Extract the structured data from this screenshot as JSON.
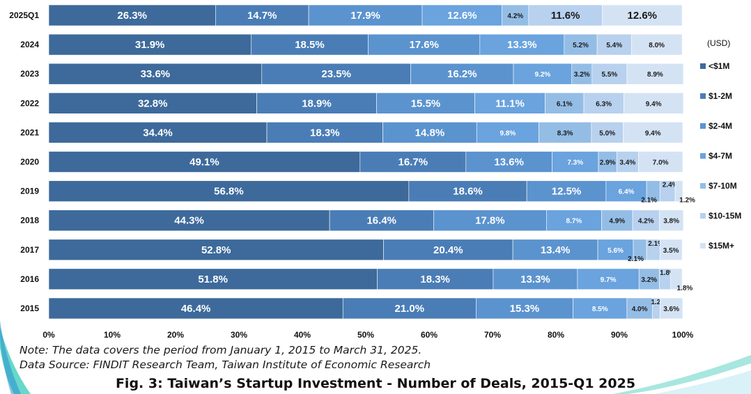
{
  "chart_data": {
    "type": "bar",
    "orientation": "horizontal",
    "stacked": true,
    "percent": true,
    "categories": [
      "2025Q1",
      "2024",
      "2023",
      "2022",
      "2021",
      "2020",
      "2019",
      "2018",
      "2017",
      "2016",
      "2015"
    ],
    "series": [
      {
        "name": "<$1M",
        "color": "#3d6a9b",
        "values": [
          26.3,
          31.9,
          33.6,
          32.8,
          34.4,
          49.1,
          56.8,
          44.3,
          52.8,
          51.8,
          46.4
        ]
      },
      {
        "name": "$1-2M",
        "color": "#4a7db6",
        "values": [
          14.7,
          18.5,
          23.5,
          18.9,
          18.3,
          16.7,
          18.6,
          16.4,
          20.4,
          18.3,
          21.0
        ]
      },
      {
        "name": "$2-4M",
        "color": "#5b93cf",
        "values": [
          17.9,
          17.6,
          16.2,
          15.5,
          14.8,
          13.6,
          12.5,
          17.8,
          13.4,
          13.3,
          15.3
        ]
      },
      {
        "name": "$4-7M",
        "color": "#6aa3de",
        "values": [
          12.6,
          13.3,
          9.2,
          11.1,
          9.8,
          7.3,
          6.4,
          8.7,
          5.6,
          9.7,
          8.5
        ]
      },
      {
        "name": "$7-10M",
        "color": "#94bde6",
        "values": [
          4.2,
          5.2,
          3.2,
          6.1,
          8.3,
          2.9,
          2.1,
          4.9,
          2.1,
          3.2,
          4.0
        ]
      },
      {
        "name": "$10-15M",
        "color": "#b7d1ee",
        "values": [
          11.6,
          5.4,
          5.5,
          6.3,
          5.0,
          3.4,
          2.4,
          4.2,
          2.1,
          1.8,
          1.2
        ]
      },
      {
        "name": "$15M+",
        "color": "#d4e3f4",
        "values": [
          12.6,
          8.0,
          8.9,
          9.4,
          9.4,
          7.0,
          1.2,
          3.8,
          3.5,
          1.8,
          3.6
        ]
      }
    ],
    "x_ticks": [
      "0%",
      "10%",
      "20%",
      "30%",
      "40%",
      "50%",
      "60%",
      "70%",
      "80%",
      "90%",
      "100%"
    ],
    "xlim": [
      0,
      100
    ],
    "legend_title": "(USD)",
    "legend_position": "right",
    "grid": false,
    "title": "Fig. 3: Taiwan’s Startup Investment - Number of Deals, 2015-Q1 2025"
  },
  "notes": {
    "coverage": "Note: The data covers the period from January 1, 2015 to March 31, 2025.",
    "source": "Data Source: FINDIT Research Team, Taiwan Institute of Economic Research"
  }
}
